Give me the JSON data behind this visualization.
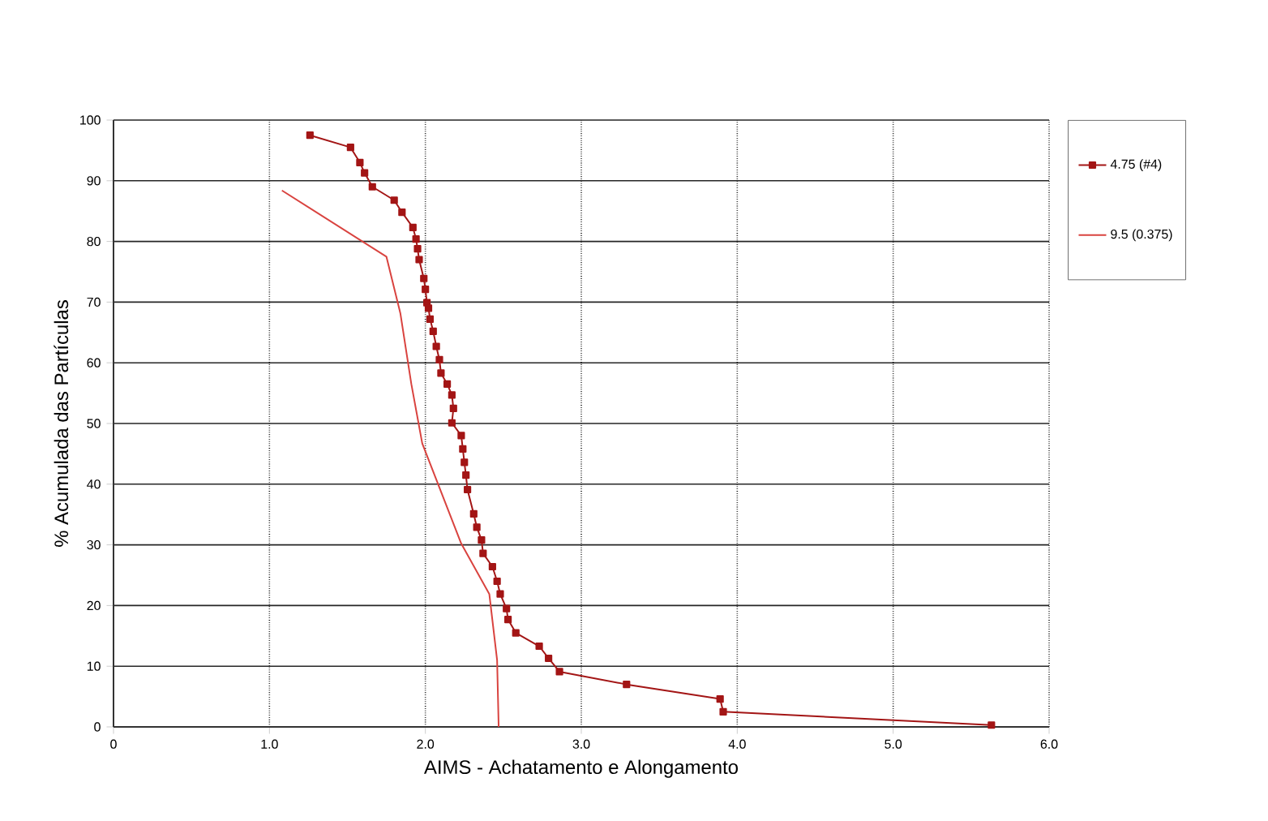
{
  "chart_data": {
    "type": "line",
    "xlabel": "AIMS - Achatamento e Alongamento",
    "ylabel": "% Acumulada das Partículas",
    "xlim": [
      0,
      6
    ],
    "ylim": [
      0,
      100
    ],
    "xticks": [
      0,
      {
        "value": 1,
        "label": "1.0"
      },
      {
        "value": 2,
        "label": "2.0"
      },
      {
        "value": 3,
        "label": "3.0"
      },
      {
        "value": 4,
        "label": "4.0"
      },
      {
        "value": 5,
        "label": "5.0"
      },
      {
        "value": 6,
        "label": "6.0"
      }
    ],
    "yticks": [
      0,
      10,
      20,
      30,
      40,
      50,
      60,
      70,
      80,
      90,
      100
    ],
    "grid": true,
    "legend": "right",
    "series": [
      {
        "name": "4.75 (#4)",
        "color": "#a31515",
        "marker": "square",
        "x": [
          1.26,
          1.52,
          1.58,
          1.61,
          1.66,
          1.8,
          1.85,
          1.92,
          1.94,
          1.95,
          1.96,
          1.99,
          2.0,
          2.01,
          2.02,
          2.03,
          2.05,
          2.07,
          2.09,
          2.1,
          2.14,
          2.17,
          2.18,
          2.17,
          2.23,
          2.24,
          2.25,
          2.26,
          2.27,
          2.31,
          2.33,
          2.36,
          2.37,
          2.43,
          2.46,
          2.48,
          2.52,
          2.53,
          2.58,
          2.73,
          2.79,
          2.86,
          3.29,
          3.89,
          3.91,
          5.63
        ],
        "values": [
          97.5,
          95.5,
          93,
          91.3,
          89,
          86.8,
          84.8,
          82.3,
          80.4,
          78.8,
          77,
          73.9,
          72.1,
          69.9,
          69,
          67.2,
          65.2,
          62.7,
          60.5,
          58.3,
          56.5,
          54.7,
          52.5,
          50.1,
          48,
          45.8,
          43.6,
          41.5,
          39.1,
          35.1,
          32.9,
          30.8,
          28.6,
          26.4,
          24,
          21.9,
          19.5,
          17.7,
          15.5,
          13.3,
          11.3,
          9.1,
          7,
          4.6,
          2.5,
          0.3
        ]
      },
      {
        "name": "9.5 (0.375)",
        "color": "#d9433f",
        "marker": "none",
        "x": [
          1.08,
          1.75,
          1.84,
          1.91,
          1.98,
          2.23,
          2.41,
          2.46,
          2.47
        ],
        "values": [
          88.4,
          77.5,
          68.1,
          56.5,
          46.7,
          30.2,
          21.9,
          11,
          0
        ]
      }
    ]
  }
}
